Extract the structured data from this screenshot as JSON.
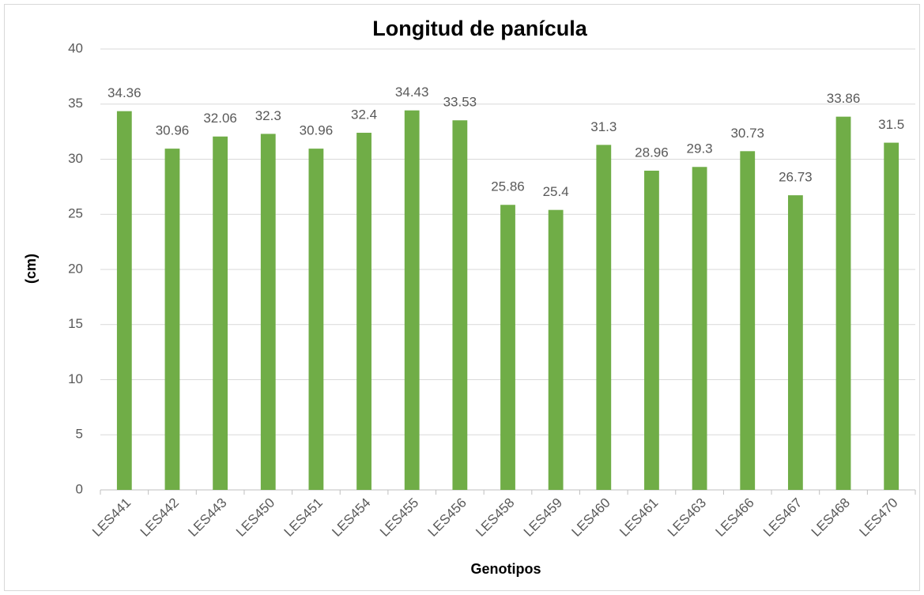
{
  "chart_data": {
    "type": "bar",
    "title": "Longitud de panícula",
    "x_label": "Genotipos",
    "y_label": "(cm)",
    "categories": [
      "LES441",
      "LES442",
      "LES443",
      "LES450",
      "LES451",
      "LES454",
      "LES455",
      "LES456",
      "LES458",
      "LES459",
      "LES460",
      "LES461",
      "LES463",
      "LES466",
      "LES467",
      "LES468",
      "LES470"
    ],
    "values": [
      34.36,
      30.96,
      32.06,
      32.3,
      30.96,
      32.4,
      34.43,
      33.53,
      25.86,
      25.4,
      31.3,
      28.96,
      29.3,
      30.73,
      26.73,
      33.86,
      31.5
    ],
    "color": "#70ad47",
    "ylim": [
      0,
      40
    ],
    "yticks": [
      0,
      5,
      10,
      15,
      20,
      25,
      30,
      35,
      40
    ],
    "grid": true
  }
}
